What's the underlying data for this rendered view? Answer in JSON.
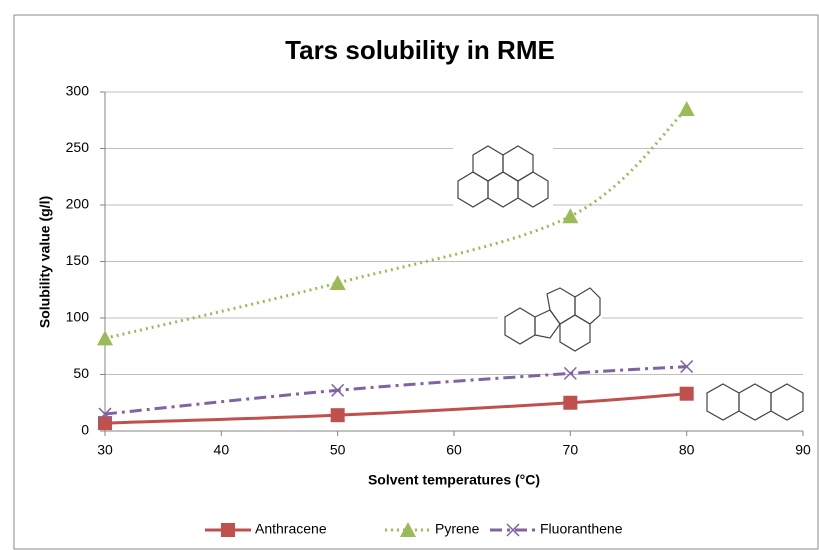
{
  "chart_data": {
    "type": "line",
    "title": "Tars solubility in RME",
    "x_label": "Solvent temperatures  (°C)",
    "y_label": "Solubility value (g/l)",
    "x": [
      30,
      50,
      70,
      80
    ],
    "series": [
      {
        "name": "Anthracene",
        "color": "#c0504d",
        "marker": "square",
        "dash": "solid",
        "values": [
          7,
          14,
          25,
          33
        ]
      },
      {
        "name": "Pyrene",
        "color": "#9bbb59",
        "marker": "triangle",
        "dash": "dot",
        "values": [
          82,
          131,
          190,
          285
        ]
      },
      {
        "name": "Fluoranthene",
        "color": "#8064a2",
        "marker": "x",
        "dash": "dashdot",
        "values": [
          15,
          36,
          51,
          57
        ]
      }
    ],
    "xlim": [
      30,
      90
    ],
    "xticks": [
      30,
      40,
      50,
      60,
      70,
      80,
      90
    ],
    "ylim": [
      0,
      300
    ],
    "yticks": [
      0,
      50,
      100,
      150,
      200,
      250,
      300
    ],
    "grid": true,
    "legend": "bottom"
  }
}
